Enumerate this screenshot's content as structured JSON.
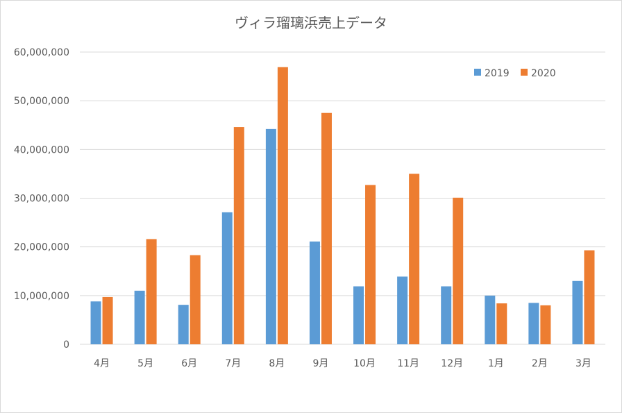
{
  "chart_data": {
    "type": "bar",
    "title": "ヴィラ瑠璃浜売上データ",
    "xlabel": "",
    "ylabel": "",
    "categories": [
      "4月",
      "5月",
      "6月",
      "7月",
      "8月",
      "9月",
      "10月",
      "11月",
      "12月",
      "1月",
      "2月",
      "3月"
    ],
    "series": [
      {
        "name": "2019",
        "color": "#5b9bd5",
        "values": [
          8800000,
          11000000,
          8100000,
          27100000,
          44200000,
          21100000,
          11900000,
          13900000,
          11900000,
          10000000,
          8500000,
          13000000
        ]
      },
      {
        "name": "2020",
        "color": "#ed7d31",
        "values": [
          9700000,
          21600000,
          18300000,
          44600000,
          56900000,
          47500000,
          32700000,
          35000000,
          30100000,
          8400000,
          8000000,
          19300000
        ]
      }
    ],
    "ylim": [
      0,
      60000000
    ],
    "yticks": [
      "0",
      "10,000,000",
      "20,000,000",
      "30,000,000",
      "40,000,000",
      "50,000,000",
      "60,000,000"
    ],
    "grid": true,
    "legend_position": "top-right"
  }
}
